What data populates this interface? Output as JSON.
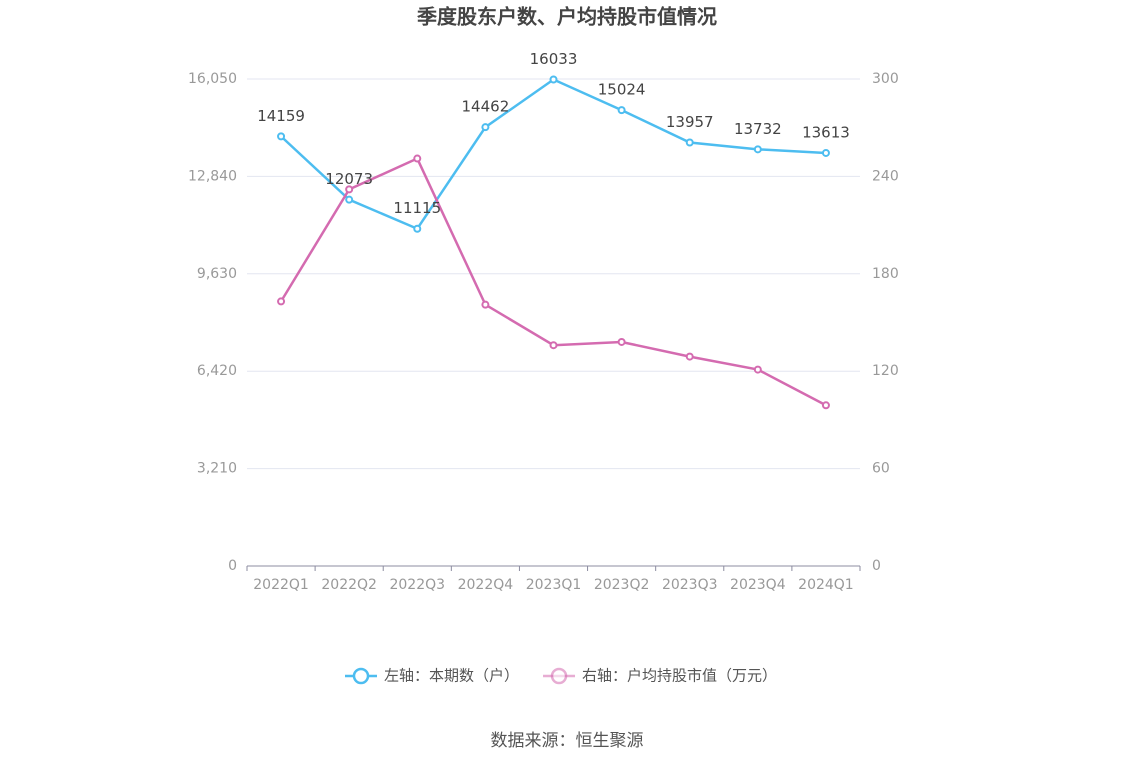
{
  "chart_data": {
    "type": "line",
    "title": "季度股东户数、户均持股市值情况",
    "categories": [
      "2022Q1",
      "2022Q2",
      "2022Q3",
      "2022Q4",
      "2023Q1",
      "2023Q2",
      "2023Q3",
      "2023Q4",
      "2024Q1"
    ],
    "series": [
      {
        "name": "左轴：本期数（户）",
        "color": "#4dbdf0",
        "values": [
          14159,
          12073,
          11115,
          14462,
          16033,
          15024,
          13957,
          13732,
          13613
        ]
      },
      {
        "name": "右轴：户均持股市值（万元）",
        "color": "#d46bb0",
        "axis": "y2",
        "values": [
          163,
          232,
          251,
          161,
          136,
          138,
          129,
          121,
          99
        ]
      }
    ],
    "ylim": [
      0,
      16050
    ],
    "yticks": [
      0,
      {
        "value": 3210,
        "label": "3,210"
      },
      {
        "value": 6420,
        "label": "6,420"
      },
      {
        "value": 9630,
        "label": "9,630"
      },
      {
        "value": 12840,
        "label": "12,840"
      },
      {
        "value": 16050,
        "label": "16,050"
      }
    ],
    "y2lim": [
      0,
      300
    ],
    "y2ticks": [
      0,
      60,
      120,
      180,
      240,
      300
    ],
    "grid": true,
    "legend": "bottom",
    "source": "数据来源：恒生聚源"
  }
}
